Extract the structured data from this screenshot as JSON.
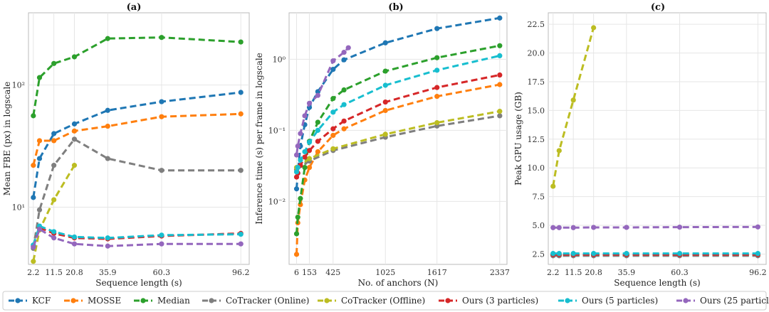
{
  "chart_data": [
    {
      "type": "line",
      "title": "(a)",
      "xlabel": "Sequence length (s)",
      "ylabel": "Mean FBE (px) in logscale",
      "yscale": "log",
      "xlim": [
        0,
        100
      ],
      "ylim": [
        3.4,
        390
      ],
      "x_ticks": [
        2.2,
        11.5,
        20.8,
        35.9,
        60.3,
        96.2
      ],
      "x_tick_labels": [
        "2.2",
        "11.5",
        "20.8",
        "35.9",
        "60.3",
        "96.2"
      ],
      "y_ticks": [
        10,
        100
      ],
      "y_tick_labels": [
        "10¹",
        "10²"
      ],
      "grid": true,
      "series": [
        {
          "name": "KCF",
          "color": "#1f77b4",
          "x": [
            2.2,
            5.0,
            11.5,
            20.8,
            35.9,
            60.3,
            96.2
          ],
          "y": [
            12,
            25,
            40,
            48,
            62,
            73,
            87
          ]
        },
        {
          "name": "MOSSE",
          "color": "#ff7f0e",
          "x": [
            2.2,
            5.0,
            11.5,
            20.8,
            35.9,
            60.3,
            96.2
          ],
          "y": [
            22,
            35,
            35,
            42,
            46,
            55,
            58
          ]
        },
        {
          "name": "Median",
          "color": "#2ca02c",
          "x": [
            2.2,
            5.0,
            11.5,
            20.8,
            35.9,
            60.3,
            96.2
          ],
          "y": [
            56,
            115,
            150,
            170,
            240,
            245,
            225
          ]
        },
        {
          "name": "CoTracker (Online)",
          "color": "#7f7f7f",
          "x": [
            2.2,
            5.0,
            11.5,
            20.8,
            35.9,
            60.3,
            96.2
          ],
          "y": [
            4.6,
            9.5,
            22,
            36,
            25,
            20,
            20
          ]
        },
        {
          "name": "CoTracker (Offline)",
          "color": "#bcbd22",
          "x": [
            2.2,
            5.0,
            11.5,
            20.8
          ],
          "y": [
            3.6,
            6.5,
            11.5,
            22
          ]
        },
        {
          "name": "Ours (3 particles)",
          "color": "#d62728",
          "x": [
            2.2,
            5.0,
            11.5,
            20.8,
            35.9,
            60.3,
            96.2
          ],
          "y": [
            4.8,
            6.8,
            6.1,
            5.6,
            5.5,
            5.8,
            6.1
          ]
        },
        {
          "name": "Ours (5 particles)",
          "color": "#17becf",
          "x": [
            2.2,
            5.0,
            11.5,
            20.8,
            35.9,
            60.3,
            96.2
          ],
          "y": [
            4.9,
            7.0,
            6.3,
            5.7,
            5.6,
            5.9,
            6.0
          ]
        },
        {
          "name": "Ours (25 particles)",
          "color": "#9467bd",
          "x": [
            2.2,
            5.0,
            11.5,
            20.8,
            35.9,
            60.3,
            96.2
          ],
          "y": [
            4.7,
            6.6,
            5.6,
            5.0,
            4.8,
            5.0,
            5.0
          ]
        }
      ]
    },
    {
      "type": "line",
      "title": "(b)",
      "xlabel": "No. of anchors (N)",
      "ylabel": "Inference time (s) per frame in logscale",
      "yscale": "log",
      "xlim": [
        -80,
        2420
      ],
      "ylim": [
        0.0013,
        4.5
      ],
      "x_ticks": [
        6,
        153,
        425,
        1025,
        1617,
        2337
      ],
      "x_tick_labels": [
        "6",
        "153",
        "425",
        "1025",
        "1617",
        "2337"
      ],
      "y_ticks": [
        0.01,
        0.1,
        1
      ],
      "y_tick_labels": [
        "10⁻²",
        "10⁻¹",
        "10⁰"
      ],
      "grid": true,
      "series": [
        {
          "name": "KCF",
          "color": "#1f77b4",
          "x": [
            6,
            20,
            50,
            100,
            153,
            250,
            425,
            550,
            1025,
            1617,
            2337
          ],
          "y": [
            0.015,
            0.025,
            0.06,
            0.12,
            0.21,
            0.35,
            0.72,
            0.98,
            1.7,
            2.7,
            3.8
          ]
        },
        {
          "name": "MOSSE",
          "color": "#ff7f0e",
          "x": [
            6,
            20,
            50,
            100,
            153,
            250,
            425,
            550,
            1025,
            1617,
            2337
          ],
          "y": [
            0.0018,
            0.005,
            0.009,
            0.02,
            0.03,
            0.05,
            0.085,
            0.105,
            0.19,
            0.3,
            0.44
          ]
        },
        {
          "name": "Median",
          "color": "#2ca02c",
          "x": [
            6,
            20,
            50,
            100,
            153,
            250,
            425,
            550,
            1025,
            1617,
            2337
          ],
          "y": [
            0.0035,
            0.006,
            0.011,
            0.03,
            0.07,
            0.13,
            0.28,
            0.37,
            0.68,
            1.05,
            1.55
          ]
        },
        {
          "name": "CoTracker (Online)",
          "color": "#7f7f7f",
          "x": [
            6,
            153,
            425,
            1025,
            1617,
            2337
          ],
          "y": [
            0.028,
            0.037,
            0.052,
            0.08,
            0.115,
            0.16
          ]
        },
        {
          "name": "CoTracker (Offline)",
          "color": "#bcbd22",
          "x": [
            6,
            153,
            425,
            1025,
            1617,
            2337
          ],
          "y": [
            0.03,
            0.04,
            0.055,
            0.088,
            0.128,
            0.185
          ]
        },
        {
          "name": "Ours (3 particles)",
          "color": "#d62728",
          "x": [
            6,
            20,
            50,
            100,
            153,
            250,
            425,
            550,
            1025,
            1617,
            2337
          ],
          "y": [
            0.022,
            0.025,
            0.032,
            0.042,
            0.052,
            0.07,
            0.105,
            0.135,
            0.25,
            0.4,
            0.6
          ]
        },
        {
          "name": "Ours (5 particles)",
          "color": "#17becf",
          "x": [
            6,
            20,
            50,
            100,
            153,
            250,
            425,
            550,
            1025,
            1617,
            2337
          ],
          "y": [
            0.026,
            0.03,
            0.038,
            0.05,
            0.068,
            0.1,
            0.18,
            0.23,
            0.43,
            0.7,
            1.12
          ]
        },
        {
          "name": "Ours (25 particles)",
          "color": "#9467bd",
          "x": [
            6,
            20,
            50,
            100,
            153,
            250,
            425,
            550,
            600
          ],
          "y": [
            0.045,
            0.06,
            0.09,
            0.16,
            0.24,
            0.31,
            0.95,
            1.25,
            1.45
          ]
        }
      ]
    },
    {
      "type": "line",
      "title": "(c)",
      "xlabel": "Sequence length (s)",
      "ylabel": "Peak GPU usage (GB)",
      "yscale": "linear",
      "xlim": [
        0,
        100
      ],
      "ylim": [
        1.6,
        23.5
      ],
      "x_ticks": [
        2.2,
        11.5,
        20.8,
        35.9,
        60.3,
        96.2
      ],
      "x_tick_labels": [
        "2.2",
        "11.5",
        "20.8",
        "35.9",
        "60.3",
        "96.2"
      ],
      "y_ticks": [
        2.5,
        5.0,
        7.5,
        10.0,
        12.5,
        15.0,
        17.5,
        20.0,
        22.5
      ],
      "y_tick_labels": [
        "2.5",
        "5.0",
        "7.5",
        "10.0",
        "12.5",
        "15.0",
        "17.5",
        "20.0",
        "22.5"
      ],
      "grid": true,
      "series": [
        {
          "name": "KCF",
          "color": "#1f77b4",
          "x": [
            2.2,
            5.0,
            11.5,
            20.8,
            35.9,
            60.3,
            96.2
          ],
          "y": [
            2.45,
            2.45,
            2.45,
            2.45,
            2.45,
            2.45,
            2.45
          ]
        },
        {
          "name": "MOSSE",
          "color": "#ff7f0e",
          "x": [
            2.2,
            5.0,
            11.5,
            20.8,
            35.9,
            60.3,
            96.2
          ],
          "y": [
            2.4,
            2.4,
            2.4,
            2.4,
            2.4,
            2.4,
            2.4
          ]
        },
        {
          "name": "Median",
          "color": "#2ca02c",
          "x": [
            2.2,
            5.0,
            11.5,
            20.8,
            35.9,
            60.3,
            96.2
          ],
          "y": [
            2.4,
            2.4,
            2.4,
            2.4,
            2.4,
            2.4,
            2.4
          ]
        },
        {
          "name": "CoTracker (Online)",
          "color": "#7f7f7f",
          "x": [
            2.2,
            5.0,
            11.5,
            20.8,
            35.9,
            60.3,
            96.2
          ],
          "y": [
            2.35,
            2.35,
            2.35,
            2.35,
            2.35,
            2.35,
            2.35
          ]
        },
        {
          "name": "CoTracker (Offline)",
          "color": "#bcbd22",
          "x": [
            2.2,
            5.0,
            11.5,
            20.8
          ],
          "y": [
            8.4,
            11.5,
            15.9,
            22.2
          ]
        },
        {
          "name": "Ours (3 particles)",
          "color": "#d62728",
          "x": [
            2.2,
            5.0,
            11.5,
            20.8,
            35.9,
            60.3,
            96.2
          ],
          "y": [
            2.45,
            2.45,
            2.45,
            2.45,
            2.45,
            2.45,
            2.45
          ]
        },
        {
          "name": "Ours (5 particles)",
          "color": "#17becf",
          "x": [
            2.2,
            5.0,
            11.5,
            20.8,
            35.9,
            60.3,
            96.2
          ],
          "y": [
            2.55,
            2.55,
            2.55,
            2.55,
            2.55,
            2.55,
            2.55
          ]
        },
        {
          "name": "Ours (25 particles)",
          "color": "#9467bd",
          "x": [
            2.2,
            5.0,
            11.5,
            20.8,
            35.9,
            60.3,
            96.2
          ],
          "y": [
            4.8,
            4.8,
            4.8,
            4.82,
            4.82,
            4.84,
            4.86
          ]
        }
      ]
    }
  ],
  "legend": {
    "placement": "bottom",
    "entries": [
      {
        "label": "KCF",
        "color": "#1f77b4"
      },
      {
        "label": "MOSSE",
        "color": "#ff7f0e"
      },
      {
        "label": "Median",
        "color": "#2ca02c"
      },
      {
        "label": "CoTracker (Online)",
        "color": "#7f7f7f"
      },
      {
        "label": "CoTracker (Offline)",
        "color": "#bcbd22"
      },
      {
        "label": "Ours (3 particles)",
        "color": "#d62728"
      },
      {
        "label": "Ours (5 particles)",
        "color": "#17becf"
      },
      {
        "label": "Ours (25 particles)",
        "color": "#9467bd"
      }
    ]
  }
}
